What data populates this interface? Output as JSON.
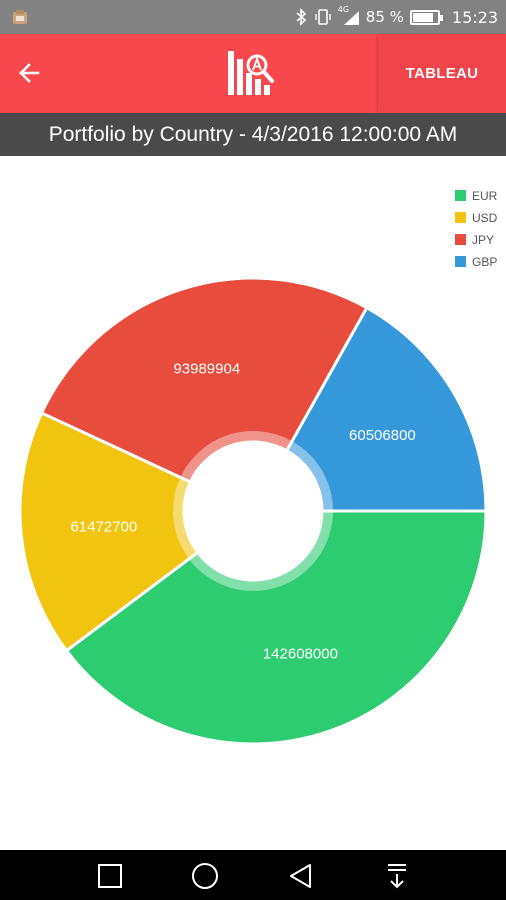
{
  "status_bar": {
    "app_icon": "app-notification-icon",
    "icons": [
      "bluetooth-icon",
      "vibrate-icon",
      "signal-4g-icon"
    ],
    "network": "4G",
    "battery_text": "85 %",
    "battery_level": 0.85,
    "time": "15:23"
  },
  "app_bar": {
    "back_icon": "back-arrow-icon",
    "logo_icon": "analytics-logo-icon",
    "action_label": "TABLEAU",
    "color": "#f8474d"
  },
  "title": "Portfolio by Country - 4/3/2016 12:00:00 AM",
  "chart_data": {
    "type": "pie",
    "donut": true,
    "title": "Portfolio by Country - 4/3/2016 12:00:00 AM",
    "legend_position": "top-right",
    "slices": [
      {
        "label": "EUR",
        "value": 142608000,
        "color": "#2ecc71",
        "display": "142608000"
      },
      {
        "label": "USD",
        "value": 61472700,
        "color": "#f1c40f",
        "display": "61472700"
      },
      {
        "label": "JPY",
        "value": 93989904,
        "color": "#e74c3c",
        "display": "93989904"
      },
      {
        "label": "GBP",
        "value": 60506800,
        "color": "#3498db",
        "display": "60506800"
      }
    ]
  },
  "nav_bar": {
    "icons": [
      "recent-apps-icon",
      "home-icon",
      "back-icon",
      "notification-pull-icon"
    ]
  }
}
